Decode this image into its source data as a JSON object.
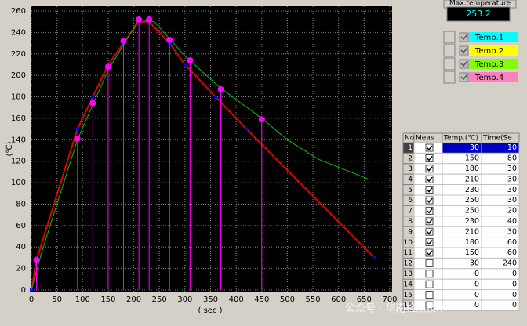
{
  "chart_data": {
    "type": "line",
    "x_label": "( sec )",
    "y_label": "(℃)",
    "xlim": [
      0,
      700
    ],
    "ylim": [
      0,
      260
    ],
    "xticks": [
      0,
      50,
      100,
      150,
      200,
      250,
      300,
      350,
      400,
      450,
      500,
      550,
      600,
      650,
      700
    ],
    "yticks": [
      0,
      20,
      40,
      60,
      80,
      100,
      120,
      140,
      160,
      180,
      200,
      220,
      240,
      260
    ],
    "grid": true,
    "series": [
      {
        "color": "#e00000",
        "width": 2,
        "marker_color": "#0000ff",
        "x": [
          0,
          10,
          90,
          120,
          150,
          180,
          210,
          230,
          270,
          300,
          360,
          420,
          670
        ],
        "values": [
          0,
          28,
          150,
          180,
          210,
          230,
          250,
          250,
          230,
          210,
          180,
          150,
          30
        ]
      },
      {
        "color": "#00c000",
        "width": 1,
        "x": [
          0,
          20,
          50,
          90,
          150,
          210,
          240,
          300,
          370,
          450,
          500,
          560,
          660
        ],
        "values": [
          0,
          35,
          80,
          140,
          205,
          252,
          250,
          218,
          188,
          160,
          140,
          122,
          103
        ]
      },
      {
        "color": "#ff00ff",
        "line": false,
        "drop_lines": true,
        "x": [
          10,
          90,
          120,
          150,
          180,
          210,
          230,
          270,
          310,
          370,
          450
        ],
        "values": [
          28,
          141,
          174,
          208,
          232,
          252,
          252,
          233,
          214,
          187,
          159
        ]
      }
    ]
  },
  "max_temperature": {
    "label": "Max.temperature",
    "value": "253.2"
  },
  "legend": [
    {
      "name": "Temp.1",
      "color": "#00ffff"
    },
    {
      "name": "Temp.2",
      "color": "#ffff00"
    },
    {
      "name": "Temp.3",
      "color": "#80ff00"
    },
    {
      "name": "Temp.4",
      "color": "#ff80c0"
    }
  ],
  "table": {
    "columns": [
      "No",
      "Meas",
      "Temp.(℃)",
      "Time(Se"
    ],
    "rows": [
      [
        1,
        true,
        30,
        10
      ],
      [
        2,
        true,
        150,
        80
      ],
      [
        3,
        true,
        180,
        30
      ],
      [
        4,
        true,
        210,
        30
      ],
      [
        5,
        true,
        230,
        30
      ],
      [
        6,
        true,
        250,
        30
      ],
      [
        7,
        true,
        250,
        20
      ],
      [
        8,
        true,
        230,
        40
      ],
      [
        9,
        true,
        210,
        30
      ],
      [
        10,
        true,
        180,
        60
      ],
      [
        11,
        true,
        150,
        60
      ],
      [
        12,
        false,
        30,
        240
      ],
      [
        13,
        false,
        0,
        0
      ],
      [
        14,
        false,
        0,
        0
      ],
      [
        15,
        false,
        0,
        0
      ],
      [
        16,
        false,
        0,
        0
      ]
    ],
    "selected_row": 0
  },
  "watermark": "公众号 · 华南检测技术"
}
